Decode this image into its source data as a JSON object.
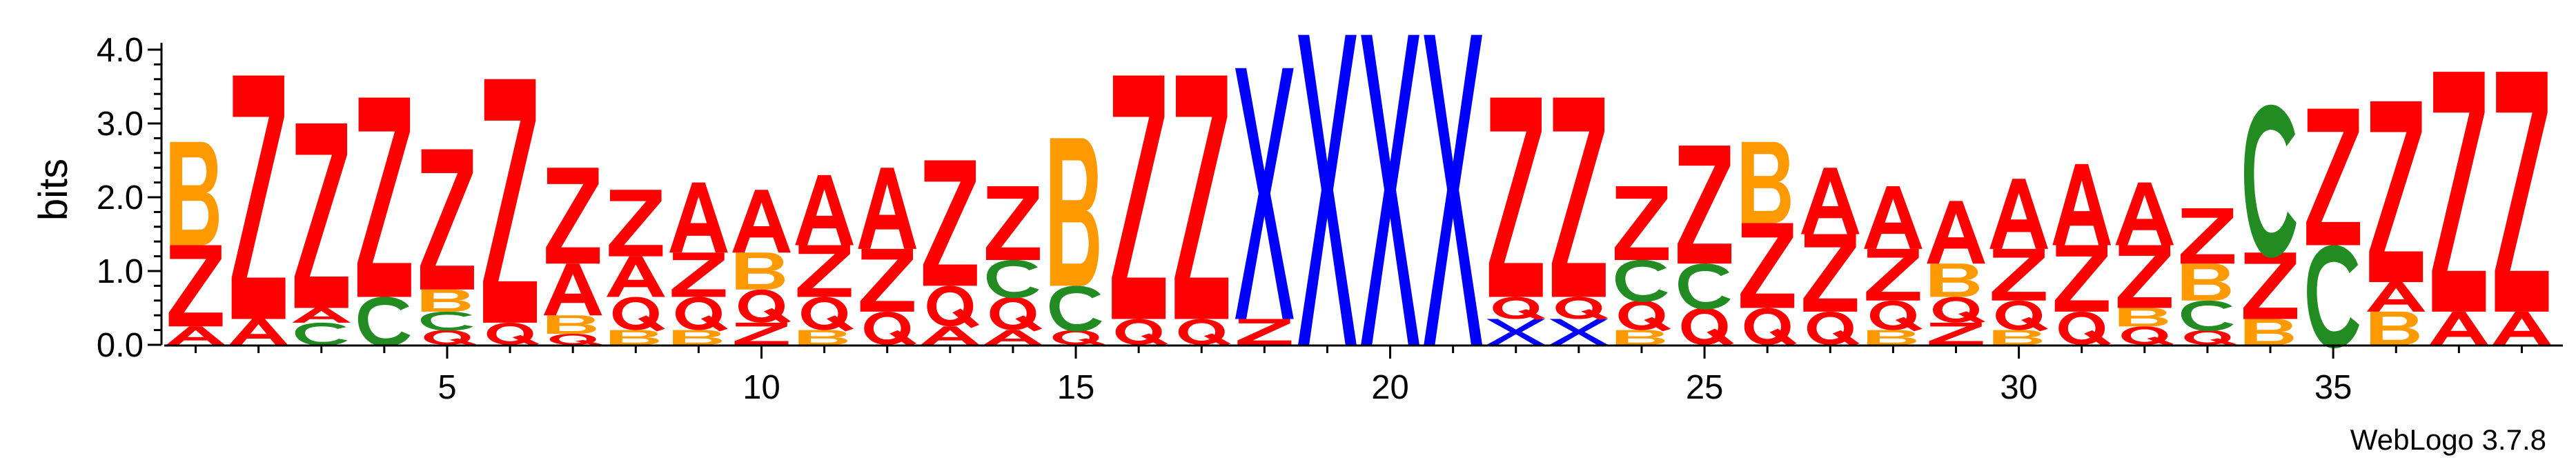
{
  "chart_data": {
    "type": "sequence-logo",
    "ylabel": "bits",
    "ylim": [
      0,
      4.0
    ],
    "y_ticks": [
      0.0,
      1.0,
      2.0,
      3.0,
      4.0
    ],
    "y_tick_labels": [
      "0.0",
      "1.0",
      "2.0",
      "3.0",
      "4.0"
    ],
    "x_tick_positions": [
      5,
      10,
      15,
      20,
      25,
      30,
      35
    ],
    "x_tick_labels": [
      "5",
      "10",
      "15",
      "20",
      "25",
      "30",
      "35"
    ],
    "positions": 38,
    "credit": "WebLogo 3.7.8",
    "colors": {
      "Z": "#ff0000",
      "A": "#ff0000",
      "Q": "#ff0000",
      "B": "#ff9900",
      "C": "#228b22",
      "X": "#0000ff"
    },
    "stacks": [
      [
        [
          "A",
          0.25
        ],
        [
          "Z",
          1.1
        ],
        [
          "B",
          1.4
        ]
      ],
      [
        [
          "A",
          0.35
        ],
        [
          "Z",
          3.3
        ]
      ],
      [
        [
          "C",
          0.3
        ],
        [
          "A",
          0.2
        ],
        [
          "Z",
          2.5
        ]
      ],
      [
        [
          "C",
          0.65
        ],
        [
          "Z",
          2.7
        ]
      ],
      [
        [
          "Q",
          0.2
        ],
        [
          "C",
          0.25
        ],
        [
          "B",
          0.3
        ],
        [
          "Z",
          1.9
        ]
      ],
      [
        [
          "Q",
          0.3
        ],
        [
          "Z",
          3.3
        ]
      ],
      [
        [
          "Q",
          0.15
        ],
        [
          "B",
          0.25
        ],
        [
          "A",
          0.7
        ],
        [
          "Z",
          1.3
        ]
      ],
      [
        [
          "B",
          0.2
        ],
        [
          "Q",
          0.45
        ],
        [
          "A",
          0.55
        ],
        [
          "Z",
          0.9
        ]
      ],
      [
        [
          "B",
          0.2
        ],
        [
          "Q",
          0.45
        ],
        [
          "Z",
          0.6
        ],
        [
          "A",
          0.95
        ]
      ],
      [
        [
          "Z",
          0.3
        ],
        [
          "Q",
          0.45
        ],
        [
          "B",
          0.5
        ],
        [
          "A",
          0.85
        ]
      ],
      [
        [
          "B",
          0.2
        ],
        [
          "Q",
          0.45
        ],
        [
          "Z",
          0.7
        ],
        [
          "A",
          0.95
        ]
      ],
      [
        [
          "Q",
          0.45
        ],
        [
          "Z",
          0.85
        ],
        [
          "A",
          1.1
        ]
      ],
      [
        [
          "A",
          0.25
        ],
        [
          "Q",
          0.55
        ],
        [
          "Z",
          1.7
        ]
      ],
      [
        [
          "A",
          0.2
        ],
        [
          "Q",
          0.45
        ],
        [
          "C",
          0.5
        ],
        [
          "Z",
          1.0
        ]
      ],
      [
        [
          "Q",
          0.2
        ],
        [
          "C",
          0.6
        ],
        [
          "B",
          2.0
        ]
      ],
      [
        [
          "Q",
          0.35
        ],
        [
          "Z",
          3.3
        ]
      ],
      [
        [
          "Q",
          0.35
        ],
        [
          "Z",
          3.3
        ]
      ],
      [
        [
          "Z",
          0.35
        ],
        [
          "X",
          3.4
        ]
      ],
      [
        [
          "X",
          4.2
        ]
      ],
      [
        [
          "X",
          4.2
        ]
      ],
      [
        [
          "X",
          4.2
        ]
      ],
      [
        [
          "X",
          0.35
        ],
        [
          "Q",
          0.3
        ],
        [
          "Z",
          2.7
        ]
      ],
      [
        [
          "X",
          0.35
        ],
        [
          "Q",
          0.3
        ],
        [
          "Z",
          2.7
        ]
      ],
      [
        [
          "B",
          0.2
        ],
        [
          "Q",
          0.4
        ],
        [
          "C",
          0.55
        ],
        [
          "Z",
          1.0
        ]
      ],
      [
        [
          "Q",
          0.5
        ],
        [
          "C",
          0.6
        ],
        [
          "Z",
          1.6
        ]
      ],
      [
        [
          "Q",
          0.5
        ],
        [
          "Z",
          1.15
        ],
        [
          "B",
          1.1
        ]
      ],
      [
        [
          "Q",
          0.45
        ],
        [
          "Z",
          1.05
        ],
        [
          "A",
          0.9
        ]
      ],
      [
        [
          "B",
          0.2
        ],
        [
          "Q",
          0.4
        ],
        [
          "Z",
          0.7
        ],
        [
          "A",
          0.85
        ]
      ],
      [
        [
          "Z",
          0.3
        ],
        [
          "Q",
          0.35
        ],
        [
          "B",
          0.45
        ],
        [
          "A",
          0.85
        ]
      ],
      [
        [
          "B",
          0.2
        ],
        [
          "Q",
          0.4
        ],
        [
          "Z",
          0.7
        ],
        [
          "A",
          0.95
        ]
      ],
      [
        [
          "Q",
          0.45
        ],
        [
          "Z",
          0.9
        ],
        [
          "A",
          1.1
        ]
      ],
      [
        [
          "Q",
          0.25
        ],
        [
          "B",
          0.25
        ],
        [
          "Z",
          0.85
        ],
        [
          "A",
          0.85
        ]
      ],
      [
        [
          "Q",
          0.2
        ],
        [
          "C",
          0.4
        ],
        [
          "B",
          0.5
        ],
        [
          "Z",
          0.75
        ]
      ],
      [
        [
          "B",
          0.35
        ],
        [
          "Z",
          0.9
        ],
        [
          "C",
          2.0
        ]
      ],
      [
        [
          "C",
          1.35
        ],
        [
          "Z",
          1.85
        ]
      ],
      [
        [
          "B",
          0.45
        ],
        [
          "A",
          0.4
        ],
        [
          "Z",
          2.45
        ]
      ],
      [
        [
          "A",
          0.45
        ],
        [
          "Z",
          3.25
        ]
      ],
      [
        [
          "A",
          0.45
        ],
        [
          "Z",
          3.25
        ]
      ]
    ]
  }
}
